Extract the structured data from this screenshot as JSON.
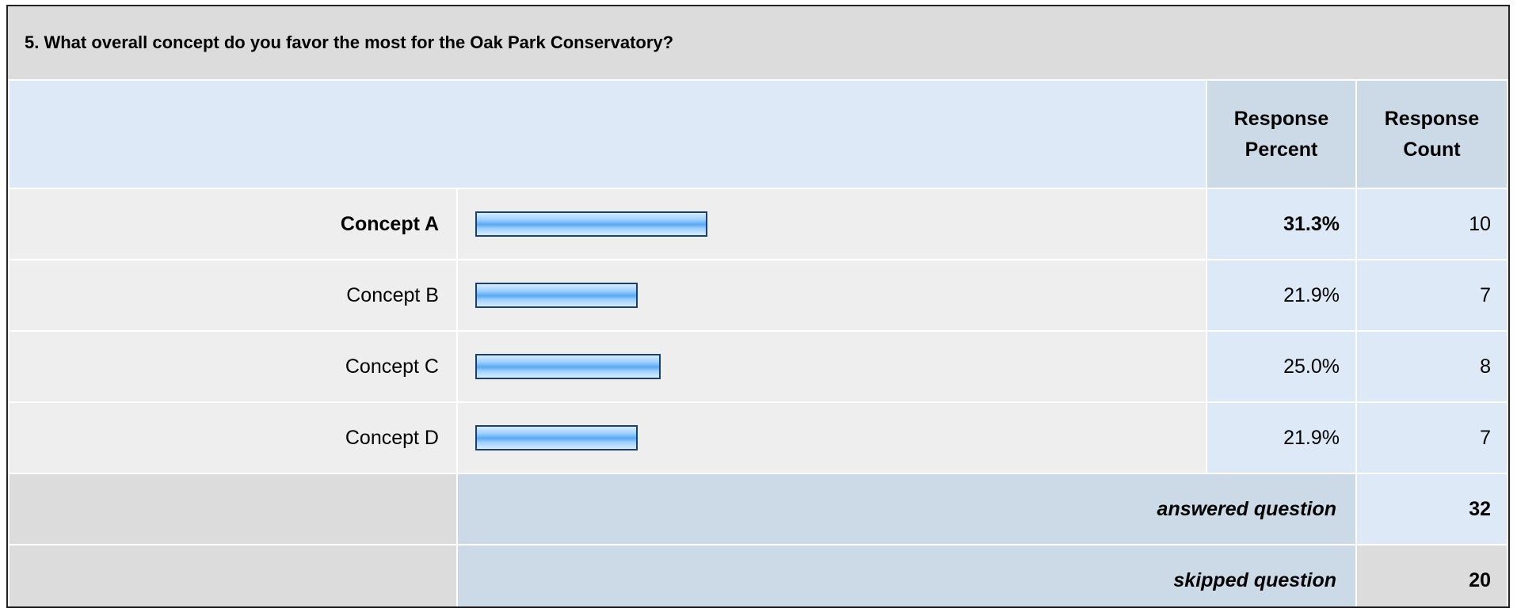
{
  "question": {
    "title": "5. What overall concept do you favor the most for the Oak Park Conservatory?"
  },
  "columns": {
    "percent_label": "Response Percent",
    "count_label": "Response Count"
  },
  "chart_data": {
    "type": "bar",
    "title": "5. What overall concept do you favor the most for the Oak Park Conservatory?",
    "categories": [
      "Concept A",
      "Concept B",
      "Concept C",
      "Concept D"
    ],
    "values": [
      31.3,
      21.9,
      25.0,
      21.9
    ],
    "percent_labels": [
      "31.3%",
      "21.9%",
      "25.0%",
      "21.9%"
    ],
    "counts": [
      "10",
      "7",
      "8",
      "7"
    ],
    "bold": [
      true,
      false,
      false,
      false
    ],
    "xlim": [
      0,
      100
    ],
    "grid": false,
    "bar_colors": {
      "fill": "#5aa8f0",
      "border": "#1d3f68"
    }
  },
  "summary": {
    "answered_label": "answered question",
    "answered_value": "32",
    "skipped_label": "skipped question",
    "skipped_value": "20"
  }
}
